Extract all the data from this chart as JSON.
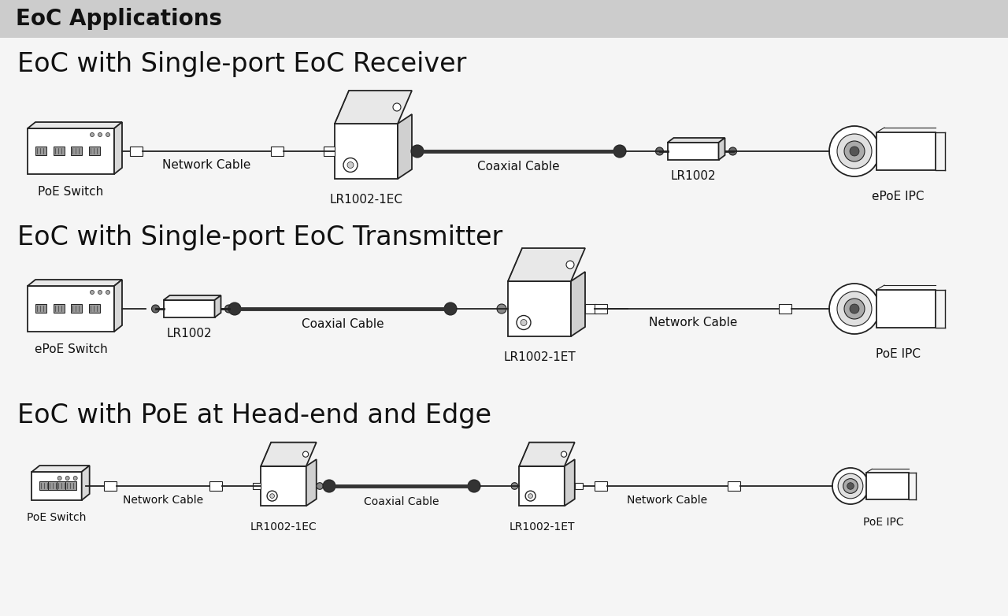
{
  "bg_header_color": "#cccccc",
  "bg_body_color": "#f5f5f5",
  "header_text": "EoC Applications",
  "header_fontsize": 20,
  "section1_title": "EoC with Single-port EoC Receiver",
  "section2_title": "EoC with Single-port EoC Transmitter",
  "section3_title": "EoC with PoE at Head-end and Edge",
  "section_title_fontsize": 24,
  "label_fontsize": 11,
  "row1_devices": [
    "PoE Switch",
    "Network Cable",
    "LR1002-1EC",
    "Coaxial Cable",
    "LR1002",
    "ePoE IPC"
  ],
  "row2_devices": [
    "ePoE Switch",
    "LR1002",
    "Coaxial Cable",
    "LR1002-1ET",
    "Network Cable",
    "PoE IPC"
  ],
  "row3_devices": [
    "PoE Switch",
    "Network Cable",
    "LR1002-1EC",
    "Coaxial Cable",
    "LR1002-1ET",
    "Network Cable",
    "PoE IPC"
  ],
  "line_color": "#222222",
  "text_color": "#111111",
  "white": "#ffffff",
  "gray_fill": "#888888",
  "light_gray": "#bbbbbb"
}
